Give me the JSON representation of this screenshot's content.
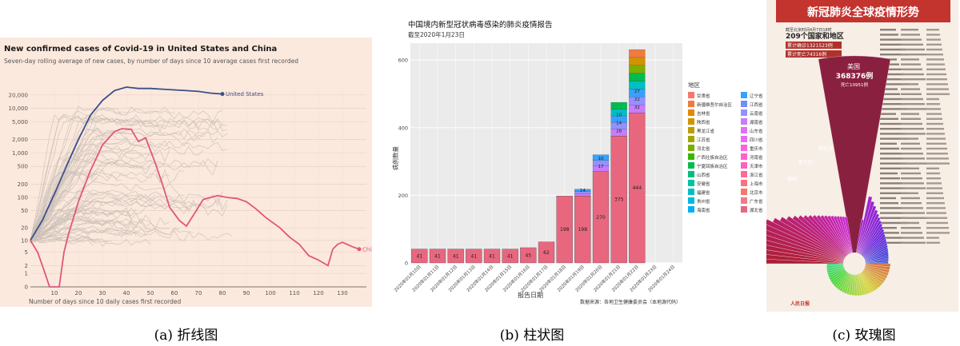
{
  "captions": {
    "a": "(a) 折线图",
    "b": "(b) 柱状图",
    "c": "(c) 玫瑰图"
  },
  "chart_data": [
    {
      "type": "line",
      "title": "New confirmed cases of Covid-19 in United States and China",
      "subtitle": "Seven-day rolling average of new cases, by number of days since 10 average cases first recorded",
      "xlabel": "Number of days since 10 daily cases first recorded",
      "ylabel": "",
      "xlim": [
        0,
        140
      ],
      "x_ticks": [
        10,
        20,
        30,
        40,
        50,
        60,
        70,
        80,
        90,
        100,
        110,
        120,
        130
      ],
      "y_scale": "log",
      "y_ticks": [
        "20,000",
        "10,000",
        "5,000",
        "2,000",
        "1,000",
        "500",
        "200",
        "100",
        "50",
        "20",
        "10",
        "5",
        "2",
        "1",
        "0"
      ],
      "series": [
        {
          "name": "United States",
          "color": "#3b4e8c",
          "x": [
            0,
            5,
            10,
            15,
            20,
            25,
            30,
            35,
            40,
            45,
            50,
            55,
            60,
            65,
            70,
            75,
            80
          ],
          "y": [
            10,
            30,
            120,
            500,
            2000,
            7000,
            15000,
            25000,
            30000,
            28000,
            28000,
            27000,
            26000,
            25000,
            24000,
            22000,
            21000
          ]
        },
        {
          "name": "China",
          "color": "#e0567b",
          "x": [
            0,
            3,
            5,
            8,
            12,
            14,
            16,
            20,
            25,
            30,
            35,
            38,
            42,
            45,
            48,
            52,
            55,
            58,
            62,
            65,
            68,
            72,
            78,
            82,
            86,
            90,
            94,
            98,
            104,
            108,
            112,
            116,
            120,
            124,
            126,
            128,
            130,
            134,
            137
          ],
          "y": [
            10,
            5,
            2,
            0,
            0,
            5,
            15,
            80,
            400,
            1500,
            3000,
            3500,
            3400,
            1800,
            2200,
            600,
            200,
            60,
            30,
            22,
            40,
            90,
            110,
            100,
            95,
            80,
            55,
            35,
            20,
            12,
            8,
            4,
            3,
            2,
            6,
            8,
            9,
            7,
            6
          ]
        }
      ],
      "background_series_color": "#c9bfb6",
      "grid": true
    },
    {
      "type": "bar",
      "title": "中国境内新型冠状病毒感染的肺炎疫情报告",
      "subtitle": "截至2020年1月23日",
      "xlabel": "报告日期",
      "ylabel": "病例数量",
      "ylim": [
        0,
        650
      ],
      "y_ticks": [
        0,
        200,
        400,
        600
      ],
      "categories": [
        "2020年01月10日",
        "2020年01月11日",
        "2020年01月12日",
        "2020年01月13日",
        "2020年01月14日",
        "2020年01月15日",
        "2020年01月16日",
        "2020年01月17日",
        "2020年01月18日",
        "2020年01月19日",
        "2020年01月20日",
        "2020年01月21日",
        "2020年01月22日",
        "2020年01月23日",
        "2020年01月24日"
      ],
      "hubei_values": [
        41,
        41,
        41,
        41,
        41,
        41,
        45,
        62,
        198,
        198,
        270,
        375,
        444,
        null,
        null
      ],
      "hubei_labels": [
        "41",
        "41",
        "41",
        "41",
        "41",
        "41",
        "45",
        "62",
        "198",
        "198",
        "270",
        "375",
        "444",
        "",
        ""
      ],
      "totals": [
        41,
        41,
        41,
        41,
        41,
        41,
        45,
        62,
        198,
        218,
        320,
        475,
        631,
        null,
        null
      ],
      "segment_labels": {
        "9": [
          "14"
        ],
        "10": [
          "17",
          "10"
        ],
        "11": [
          "28",
          "14",
          "10"
        ],
        "12": [
          "32",
          "22",
          "27"
        ]
      },
      "legend_title": "地区",
      "legend": [
        {
          "name": "甘肃省",
          "color": "#f8766d"
        },
        {
          "name": "新疆维吾尔自治区",
          "color": "#f17b3f"
        },
        {
          "name": "吉林省",
          "color": "#e38900"
        },
        {
          "name": "陕西省",
          "color": "#d29300"
        },
        {
          "name": "黑龙江省",
          "color": "#bd9c00"
        },
        {
          "name": "江苏省",
          "color": "#a3a500"
        },
        {
          "name": "河北省",
          "color": "#7cae00"
        },
        {
          "name": "广西壮族自治区",
          "color": "#39b600"
        },
        {
          "name": "宁夏回族自治区",
          "color": "#00bb4e"
        },
        {
          "name": "山西省",
          "color": "#00bf7d"
        },
        {
          "name": "安徽省",
          "color": "#00c1a3"
        },
        {
          "name": "福建省",
          "color": "#00bfc4"
        },
        {
          "name": "贵州省",
          "color": "#00bae0"
        },
        {
          "name": "海南省",
          "color": "#00b0f6"
        },
        {
          "name": "辽宁省",
          "color": "#35a2ff"
        },
        {
          "name": "江西省",
          "color": "#6f8ff8"
        },
        {
          "name": "云南省",
          "color": "#9590ff"
        },
        {
          "name": "湖南省",
          "color": "#c77cff"
        },
        {
          "name": "山东省",
          "color": "#dc71fa"
        },
        {
          "name": "四川省",
          "color": "#e76bf3"
        },
        {
          "name": "重庆市",
          "color": "#f862df"
        },
        {
          "name": "河南省",
          "color": "#fd61d1"
        },
        {
          "name": "天津市",
          "color": "#ff62bc"
        },
        {
          "name": "浙江省",
          "color": "#ff6a98"
        },
        {
          "name": "上海市",
          "color": "#fc717f"
        },
        {
          "name": "北京市",
          "color": "#f8766d"
        },
        {
          "name": "广东省",
          "color": "#ef7b89"
        },
        {
          "name": "湖北省",
          "color": "#e8677f"
        }
      ],
      "source": "数据来源：各地卫生健康委员会（本地源代码）"
    },
    {
      "type": "pie",
      "title": "新冠肺炎全球疫情形势",
      "subtitle_lines": [
        "截至北京时间4月7日18时",
        "209个国家和地区",
        "累计确诊1321523例",
        "累计死亡74316例"
      ],
      "highlight_label": "美国",
      "highlight_value": "368376例",
      "highlight_sub": "死亡10951例",
      "second_label": "西班牙",
      "third_label": "意大利",
      "fourth_label": "德国",
      "footer": "人民日报"
    }
  ]
}
